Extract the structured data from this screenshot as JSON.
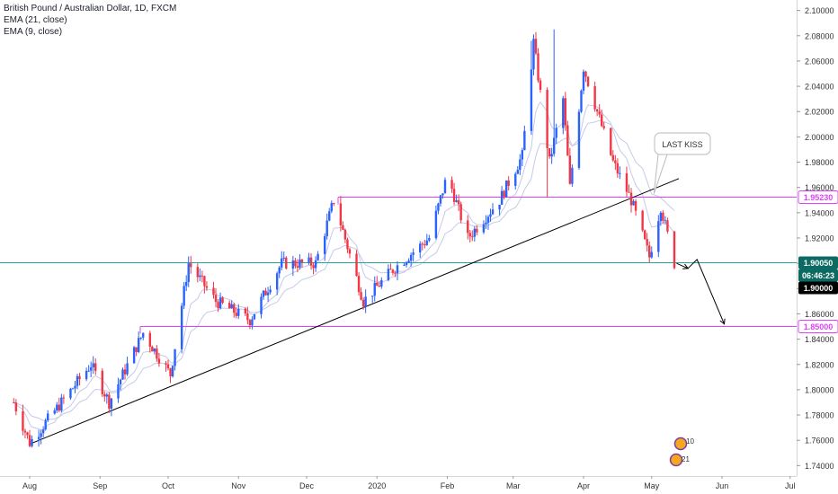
{
  "chart_data": {
    "type": "candlestick",
    "title": "British Pound / Australian Dollar, 1D, FXCM",
    "indicators": [
      "EMA (21, close)",
      "EMA (9, close)"
    ],
    "y_ticks": [
      1.74,
      1.76,
      1.78,
      1.8,
      1.82,
      1.84,
      1.86,
      1.88,
      1.9,
      1.92,
      1.94,
      1.96,
      1.98,
      2.0,
      2.02,
      2.04,
      2.06,
      2.08,
      2.1
    ],
    "y_tick_labels": [
      "1.74000",
      "1.76000",
      "1.78000",
      "1.80000",
      "1.82000",
      "1.84000",
      "1.86000",
      "1.88000",
      "1.90000",
      "1.92000",
      "1.94000",
      "1.96000",
      "1.98000",
      "2.00000",
      "2.02000",
      "2.04000",
      "2.06000",
      "2.08000",
      "2.10000"
    ],
    "ylim": [
      1.736,
      2.104
    ],
    "x_ticks": [
      "Aug",
      "Sep",
      "Oct",
      "Nov",
      "Dec",
      "2020",
      "Feb",
      "Mar",
      "Apr",
      "May",
      "Jun",
      "Jul"
    ],
    "key_points": [
      {
        "date": "2019-07-25",
        "close": 1.79
      },
      {
        "date": "2019-08-01",
        "close": 1.758
      },
      {
        "date": "2019-08-15",
        "close": 1.79
      },
      {
        "date": "2019-08-28",
        "close": 1.82
      },
      {
        "date": "2019-09-05",
        "close": 1.79
      },
      {
        "date": "2019-09-20",
        "close": 1.845
      },
      {
        "date": "2019-10-02",
        "close": 1.812
      },
      {
        "date": "2019-10-10",
        "close": 1.9
      },
      {
        "date": "2019-10-22",
        "close": 1.87
      },
      {
        "date": "2019-11-06",
        "close": 1.855
      },
      {
        "date": "2019-11-20",
        "close": 1.9
      },
      {
        "date": "2019-12-05",
        "close": 1.9
      },
      {
        "date": "2019-12-13",
        "close": 1.95
      },
      {
        "date": "2019-12-26",
        "close": 1.87
      },
      {
        "date": "2020-01-08",
        "close": 1.895
      },
      {
        "date": "2020-01-24",
        "close": 1.92
      },
      {
        "date": "2020-02-01",
        "close": 1.97
      },
      {
        "date": "2020-02-10",
        "close": 1.92
      },
      {
        "date": "2020-02-24",
        "close": 1.95
      },
      {
        "date": "2020-03-05",
        "close": 1.985
      },
      {
        "date": "2020-03-10",
        "close": 2.075
      },
      {
        "date": "2020-03-17",
        "close": 1.98
      },
      {
        "date": "2020-03-23",
        "close": 2.03
      },
      {
        "date": "2020-03-26",
        "close": 1.96
      },
      {
        "date": "2020-04-01",
        "close": 2.055
      },
      {
        "date": "2020-04-07",
        "close": 2.02
      },
      {
        "date": "2020-04-14",
        "close": 1.98
      },
      {
        "date": "2020-04-22",
        "close": 1.95
      },
      {
        "date": "2020-04-30",
        "close": 1.905
      },
      {
        "date": "2020-05-05",
        "close": 1.945
      },
      {
        "date": "2020-05-11",
        "close": 1.9
      }
    ],
    "horizontal_levels": [
      {
        "value": 1.9523,
        "label": "1.95230",
        "color": "#e040fb"
      },
      {
        "value": 1.85,
        "label": "1.85000",
        "color": "#e040fb"
      },
      {
        "value": 1.9005,
        "label": "1.90050",
        "color": "#26a69a"
      }
    ],
    "price_tags": [
      {
        "label": "1.90050",
        "bg": "#0b6b63"
      },
      {
        "label": "06:46:23",
        "bg": "#0b6b63"
      },
      {
        "label": "1.90000",
        "bg": "#000000"
      }
    ],
    "trendline": {
      "from": {
        "date": "2019-08-01",
        "value": 1.757
      },
      "to": {
        "date": "2020-05-13",
        "value": 1.967
      }
    },
    "annotation": {
      "text": "LAST KISS",
      "near_date": "2020-05-02",
      "near_value": 1.955
    },
    "projection": [
      {
        "date": "2020-05-12",
        "value": 1.9
      },
      {
        "date": "2020-05-17",
        "value": 1.896
      },
      {
        "date": "2020-05-21",
        "value": 1.903
      },
      {
        "date": "2020-06-02",
        "value": 1.852
      }
    ],
    "colors": {
      "up": "#2962ff",
      "down": "#f23645",
      "ema": "#c5cae9",
      "trendline": "#000000",
      "axis_text": "#333333"
    },
    "badges": [
      "10",
      "21"
    ]
  }
}
